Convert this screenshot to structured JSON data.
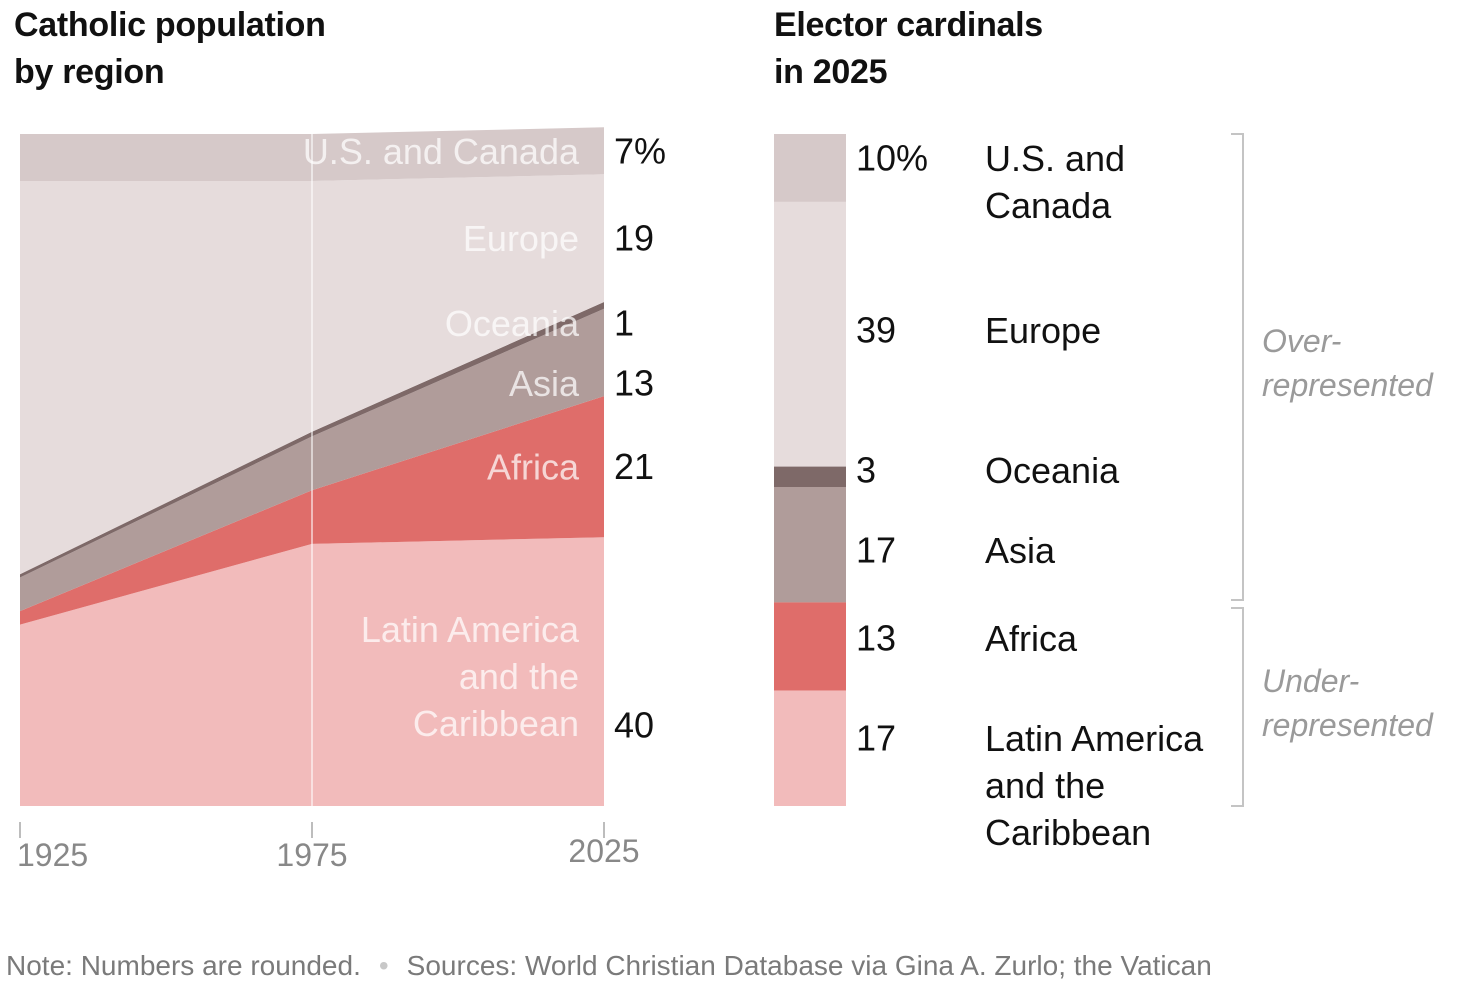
{
  "chart_data": [
    {
      "type": "area",
      "stacked": true,
      "normalized_percent": true,
      "title": "Catholic population by region",
      "title_lines": [
        "Catholic population",
        "by region"
      ],
      "x": [
        "1925",
        "1975",
        "2025"
      ],
      "series": [
        {
          "name": "Latin America and the Caribbean",
          "label_lines": [
            "Latin America",
            "and the",
            "Caribbean"
          ],
          "values": [
            27,
            39,
            40
          ],
          "color": "#f2bbbb"
        },
        {
          "name": "Africa",
          "label_lines": [
            "Africa"
          ],
          "values": [
            2,
            8,
            21
          ],
          "color": "#df6d6a"
        },
        {
          "name": "Asia",
          "label_lines": [
            "Asia"
          ],
          "values": [
            5,
            8,
            13
          ],
          "color": "#b09c9a"
        },
        {
          "name": "Oceania",
          "label_lines": [
            "Oceania"
          ],
          "values": [
            0.5,
            0.7,
            1
          ],
          "color": "#7e6968"
        },
        {
          "name": "Europe",
          "label_lines": [
            "Europe"
          ],
          "values": [
            58.5,
            37.3,
            19
          ],
          "color": "#e6dcdc"
        },
        {
          "name": "U.S. and Canada",
          "label_lines": [
            "U.S. and Canada"
          ],
          "values": [
            7,
            7,
            7
          ],
          "color": "#d6c9c9"
        }
      ],
      "end_labels": [
        "40",
        "21",
        "13",
        "1",
        "19",
        "7%"
      ],
      "ylim": [
        0,
        100
      ],
      "legend": "none"
    },
    {
      "type": "bar",
      "stacked": true,
      "title": "Elector cardinals in 2025",
      "title_lines": [
        "Elector cardinals",
        "in 2025"
      ],
      "categories": [
        "U.S. and Canada",
        "Europe",
        "Oceania",
        "Asia",
        "Africa",
        "Latin America and the Caribbean"
      ],
      "category_lines": [
        [
          "U.S. and",
          "Canada"
        ],
        [
          "Europe"
        ],
        [
          "Oceania"
        ],
        [
          "Asia"
        ],
        [
          "Africa"
        ],
        [
          "Latin America",
          "and the",
          "Caribbean"
        ]
      ],
      "values": [
        10,
        39,
        3,
        17,
        13,
        17
      ],
      "value_labels": [
        "10%",
        "39",
        "3",
        "17",
        "13",
        "17"
      ],
      "colors": [
        "#d6c9c9",
        "#e6dcdc",
        "#7e6968",
        "#b09c9a",
        "#df6d6a",
        "#f2bbbb"
      ],
      "groups": [
        {
          "label_lines": [
            "Over-",
            "represented"
          ],
          "categories": [
            "U.S. and Canada",
            "Europe",
            "Oceania",
            "Asia"
          ]
        },
        {
          "label_lines": [
            "Under-",
            "represented"
          ],
          "categories": [
            "Africa",
            "Latin America and the Caribbean"
          ]
        }
      ]
    }
  ],
  "footer": {
    "note": "Note: Numbers are rounded.",
    "separator": "•",
    "sources": "Sources: World Christian Database via Gina A. Zurlo; the Vatican"
  }
}
